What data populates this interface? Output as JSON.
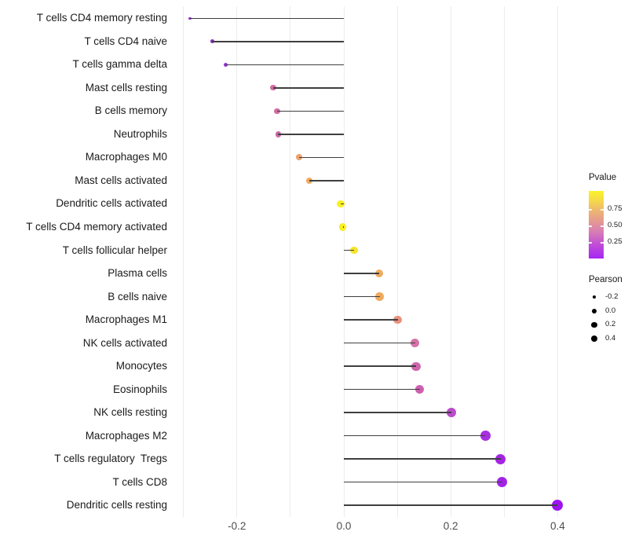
{
  "chart_data": {
    "type": "scatter",
    "style": "lollipop",
    "title": "",
    "xlabel": "",
    "ylabel": "",
    "xlim": [
      -0.32,
      0.45
    ],
    "grid": "vertical-major-only",
    "x_gridlines": [
      -0.3,
      -0.2,
      -0.1,
      0.0,
      0.1,
      0.2,
      0.3,
      0.4
    ],
    "x_ticks": [
      {
        "label": "-0.2",
        "v": -0.2
      },
      {
        "label": "0.0",
        "v": 0.0
      },
      {
        "label": "0.2",
        "v": 0.2
      },
      {
        "label": "0.4",
        "v": 0.4
      }
    ],
    "rows": [
      {
        "label": "T cells CD4 memory resting",
        "pearson": -0.288,
        "pvalue_color": "#9130d6"
      },
      {
        "label": "T cells CD4 naive",
        "pearson": -0.246,
        "pvalue_color": "#8f2bd1"
      },
      {
        "label": "T cells gamma delta",
        "pearson": -0.221,
        "pvalue_color": "#9438d4"
      },
      {
        "label": "Mast cells resting",
        "pearson": -0.132,
        "pvalue_color": "#d06fa4"
      },
      {
        "label": "B cells memory",
        "pearson": -0.125,
        "pvalue_color": "#cf6da2"
      },
      {
        "label": "Neutrophils",
        "pearson": -0.123,
        "pvalue_color": "#cf6aa3"
      },
      {
        "label": "Macrophages M0",
        "pearson": -0.084,
        "pvalue_color": "#eca26e"
      },
      {
        "label": "Mast cells activated",
        "pearson": -0.065,
        "pvalue_color": "#f0ab5e"
      },
      {
        "label": "Dendritic cells activated",
        "pearson": -0.006,
        "pvalue_color": "#f8ef20"
      },
      {
        "label": "T cells CD4 memory activated",
        "pearson": -0.002,
        "pvalue_color": "#f8ef20"
      },
      {
        "label": "T cells follicular helper",
        "pearson": 0.019,
        "pvalue_color": "#f6e42a"
      },
      {
        "label": "Plasma cells",
        "pearson": 0.066,
        "pvalue_color": "#eeab5f"
      },
      {
        "label": "B cells naive",
        "pearson": 0.067,
        "pvalue_color": "#eeab5f"
      },
      {
        "label": "Macrophages M1",
        "pearson": 0.101,
        "pvalue_color": "#e98f7f"
      },
      {
        "label": "NK cells activated",
        "pearson": 0.133,
        "pvalue_color": "#d572a8"
      },
      {
        "label": "Monocytes",
        "pearson": 0.135,
        "pvalue_color": "#cd66ad"
      },
      {
        "label": "Eosinophils",
        "pearson": 0.142,
        "pvalue_color": "#d05fb2"
      },
      {
        "label": "NK cells resting",
        "pearson": 0.201,
        "pvalue_color": "#ba4bcb"
      },
      {
        "label": "Macrophages M2",
        "pearson": 0.265,
        "pvalue_color": "#a72fdf"
      },
      {
        "label": "T cells regulatory  Tregs",
        "pearson": 0.293,
        "pvalue_color": "#a324e5"
      },
      {
        "label": "T cells CD8",
        "pearson": 0.296,
        "pvalue_color": "#a124e6"
      },
      {
        "label": "Dendritic cells resting",
        "pearson": 0.399,
        "pvalue_color": "#9d13f0"
      }
    ],
    "legend": {
      "pvalue": {
        "title": "Pvalue",
        "ticks": [
          {
            "label": "0.75",
            "p": 0.75
          },
          {
            "label": "0.50",
            "p": 0.5
          },
          {
            "label": "0.25",
            "p": 0.25
          }
        ],
        "gradient_stops_bottom_to_top": [
          {
            "color": "#a625f2",
            "pos": 0
          },
          {
            "color": "#c04cd7",
            "pos": 20
          },
          {
            "color": "#d77fb4",
            "pos": 40
          },
          {
            "color": "#e59992",
            "pos": 55
          },
          {
            "color": "#edb473",
            "pos": 70
          },
          {
            "color": "#f4d84b",
            "pos": 85
          },
          {
            "color": "#faf32a",
            "pos": 100
          }
        ]
      },
      "pearson": {
        "title": "Pearson",
        "items": [
          {
            "label": "-0.2",
            "r": 2.2
          },
          {
            "label": "0.0",
            "r": 3.0
          },
          {
            "label": "0.2",
            "r": 3.7
          },
          {
            "label": "0.4",
            "r": 4.3
          }
        ]
      }
    },
    "style_hints": {
      "stem_color": "#3f3f3f",
      "gridline_color": "#ececec",
      "axis_text_color": "#4d4d4d",
      "label_text_color": "#1a1a1a"
    }
  }
}
